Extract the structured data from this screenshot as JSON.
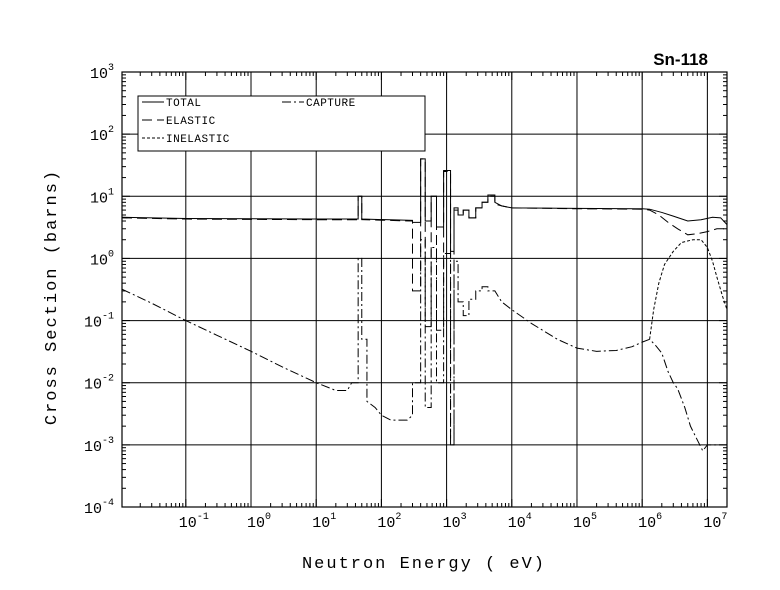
{
  "chart_data": {
    "type": "line",
    "title": "Sn-118",
    "xlabel": "Neutron Energy ( eV)",
    "ylabel": "Cross Section (barns)",
    "x_scale": "log",
    "y_scale": "log",
    "xlim": [
      0.0105,
      20000000
    ],
    "ylim": [
      0.0001,
      1000
    ],
    "grid": true,
    "legend_position": "top-left",
    "x_ticks": [
      {
        "base": "10",
        "exp": "-1",
        "value": 0.1
      },
      {
        "base": "10",
        "exp": "0",
        "value": 1
      },
      {
        "base": "10",
        "exp": "1",
        "value": 10
      },
      {
        "base": "10",
        "exp": "2",
        "value": 100
      },
      {
        "base": "10",
        "exp": "3",
        "value": 1000
      },
      {
        "base": "10",
        "exp": "4",
        "value": 10000
      },
      {
        "base": "10",
        "exp": "5",
        "value": 100000
      },
      {
        "base": "10",
        "exp": "6",
        "value": 1000000
      },
      {
        "base": "10",
        "exp": "7",
        "value": 10000000
      }
    ],
    "y_ticks": [
      {
        "base": "10",
        "exp": "-4",
        "value": 0.0001
      },
      {
        "base": "10",
        "exp": "-3",
        "value": 0.001
      },
      {
        "base": "10",
        "exp": "-2",
        "value": 0.01
      },
      {
        "base": "10",
        "exp": "-1",
        "value": 0.1
      },
      {
        "base": "10",
        "exp": "0",
        "value": 1
      },
      {
        "base": "10",
        "exp": "1",
        "value": 10
      },
      {
        "base": "10",
        "exp": "2",
        "value": 100
      },
      {
        "base": "10",
        "exp": "3",
        "value": 1000
      }
    ],
    "series": [
      {
        "name": "TOTAL",
        "dash": "solid",
        "points": [
          [
            0.0105,
            4.6
          ],
          [
            0.1,
            4.4
          ],
          [
            10,
            4.3
          ],
          [
            44,
            4.3
          ],
          [
            44,
            10
          ],
          [
            50,
            10
          ],
          [
            50,
            4.3
          ],
          [
            300,
            4.1
          ],
          [
            300,
            3.8
          ],
          [
            400,
            3.8
          ],
          [
            400,
            40
          ],
          [
            470,
            40
          ],
          [
            470,
            4
          ],
          [
            580,
            4
          ],
          [
            580,
            10
          ],
          [
            700,
            10
          ],
          [
            700,
            3.2
          ],
          [
            900,
            3.2
          ],
          [
            900,
            26
          ],
          [
            1150,
            26
          ],
          [
            1150,
            1.3
          ],
          [
            1300,
            1.3
          ],
          [
            1300,
            6.5
          ],
          [
            1500,
            6.5
          ],
          [
            1500,
            5
          ],
          [
            1800,
            5
          ],
          [
            1800,
            6
          ],
          [
            2200,
            6
          ],
          [
            2200,
            4.5
          ],
          [
            2800,
            4.5
          ],
          [
            2800,
            6.5
          ],
          [
            3500,
            6.5
          ],
          [
            3500,
            8
          ],
          [
            4300,
            8
          ],
          [
            4300,
            10.5
          ],
          [
            5500,
            10.5
          ],
          [
            5500,
            8
          ],
          [
            7000,
            7
          ],
          [
            10000,
            6.5
          ],
          [
            100000,
            6.4
          ],
          [
            1000000,
            6.3
          ],
          [
            1300000,
            6.2
          ],
          [
            2000000,
            5.5
          ],
          [
            3000000,
            4.8
          ],
          [
            5000000,
            4
          ],
          [
            8000000,
            4.2
          ],
          [
            12000000,
            4.6
          ],
          [
            16000000,
            4.5
          ],
          [
            20000000,
            3.5
          ]
        ]
      },
      {
        "name": "ELASTIC",
        "dash": "long",
        "points": [
          [
            0.0105,
            4.5
          ],
          [
            0.1,
            4.3
          ],
          [
            10,
            4.2
          ],
          [
            44,
            4.2
          ],
          [
            44,
            10
          ],
          [
            50,
            10
          ],
          [
            50,
            4.2
          ],
          [
            300,
            4
          ],
          [
            300,
            0.3
          ],
          [
            400,
            0.3
          ],
          [
            400,
            40
          ],
          [
            470,
            40
          ],
          [
            470,
            0.08
          ],
          [
            580,
            0.08
          ],
          [
            580,
            10
          ],
          [
            700,
            10
          ],
          [
            700,
            0.07
          ],
          [
            900,
            0.07
          ],
          [
            900,
            25
          ],
          [
            1150,
            25
          ],
          [
            1150,
            0.001
          ],
          [
            1300,
            0.001
          ],
          [
            1300,
            6
          ],
          [
            1500,
            6
          ],
          [
            1500,
            5
          ],
          [
            1800,
            5
          ],
          [
            1800,
            6
          ],
          [
            2200,
            6
          ],
          [
            2200,
            4.5
          ],
          [
            2800,
            4.5
          ],
          [
            2800,
            6.5
          ],
          [
            3500,
            6.5
          ],
          [
            3500,
            8
          ],
          [
            4300,
            8
          ],
          [
            4300,
            10
          ],
          [
            5500,
            10
          ],
          [
            5500,
            7.5
          ],
          [
            7000,
            7
          ],
          [
            10000,
            6.5
          ],
          [
            100000,
            6.3
          ],
          [
            1000000,
            6.2
          ],
          [
            1300000,
            6
          ],
          [
            1800000,
            5
          ],
          [
            2500000,
            3.8
          ],
          [
            3500000,
            3
          ],
          [
            5000000,
            2.4
          ],
          [
            7000000,
            2.5
          ],
          [
            10000000,
            2.7
          ],
          [
            14000000,
            3
          ],
          [
            18000000,
            3
          ],
          [
            20000000,
            2.8
          ]
        ]
      },
      {
        "name": "INELASTIC",
        "dash": "short",
        "points": [
          [
            1300000,
            0.05
          ],
          [
            1500000,
            0.15
          ],
          [
            1800000,
            0.4
          ],
          [
            2200000,
            0.8
          ],
          [
            3000000,
            1.3
          ],
          [
            4000000,
            1.8
          ],
          [
            6000000,
            2
          ],
          [
            8000000,
            2
          ],
          [
            10000000,
            1.5
          ],
          [
            12000000,
            0.9
          ],
          [
            14000000,
            0.5
          ],
          [
            17000000,
            0.25
          ],
          [
            20000000,
            0.15
          ]
        ]
      },
      {
        "name": "CAPTURE",
        "dash": "dashdot",
        "points": [
          [
            0.0105,
            0.32
          ],
          [
            0.03,
            0.19
          ],
          [
            0.1,
            0.1
          ],
          [
            0.3,
            0.058
          ],
          [
            1,
            0.032
          ],
          [
            3,
            0.018
          ],
          [
            10,
            0.01
          ],
          [
            20,
            0.0075
          ],
          [
            30,
            0.0075
          ],
          [
            35,
            0.01
          ],
          [
            44,
            0.01
          ],
          [
            44,
            1
          ],
          [
            50,
            1
          ],
          [
            50,
            0.05
          ],
          [
            60,
            0.05
          ],
          [
            60,
            0.005
          ],
          [
            80,
            0.004
          ],
          [
            100,
            0.003
          ],
          [
            140,
            0.0025
          ],
          [
            200,
            0.0025
          ],
          [
            250,
            0.0025
          ],
          [
            300,
            0.003
          ],
          [
            300,
            0.01
          ],
          [
            400,
            0.01
          ],
          [
            400,
            2
          ],
          [
            470,
            2
          ],
          [
            470,
            0.004
          ],
          [
            580,
            0.004
          ],
          [
            580,
            1.5
          ],
          [
            700,
            1.5
          ],
          [
            700,
            0.01
          ],
          [
            900,
            0.01
          ],
          [
            900,
            1.2
          ],
          [
            1150,
            1.2
          ],
          [
            1150,
            0.001
          ],
          [
            1300,
            0.001
          ],
          [
            1300,
            0.9
          ],
          [
            1500,
            0.9
          ],
          [
            1500,
            0.2
          ],
          [
            1800,
            0.2
          ],
          [
            1800,
            0.12
          ],
          [
            2200,
            0.12
          ],
          [
            2200,
            0.22
          ],
          [
            2800,
            0.22
          ],
          [
            2800,
            0.3
          ],
          [
            3500,
            0.3
          ],
          [
            3500,
            0.35
          ],
          [
            4300,
            0.35
          ],
          [
            4300,
            0.3
          ],
          [
            5500,
            0.3
          ],
          [
            7000,
            0.2
          ],
          [
            10000,
            0.15
          ],
          [
            20000,
            0.09
          ],
          [
            50000,
            0.05
          ],
          [
            100000,
            0.036
          ],
          [
            200000,
            0.032
          ],
          [
            400000,
            0.033
          ],
          [
            700000,
            0.038
          ],
          [
            1000000,
            0.045
          ],
          [
            1300000,
            0.05
          ],
          [
            1600000,
            0.04
          ],
          [
            2000000,
            0.03
          ],
          [
            2500000,
            0.015
          ],
          [
            3000000,
            0.01
          ],
          [
            3500000,
            0.008
          ],
          [
            4500000,
            0.004
          ],
          [
            5500000,
            0.002
          ],
          [
            7000000,
            0.0012
          ],
          [
            8500000,
            0.0008
          ],
          [
            10000000,
            0.001
          ],
          [
            20000000,
            0.001
          ]
        ]
      }
    ]
  }
}
